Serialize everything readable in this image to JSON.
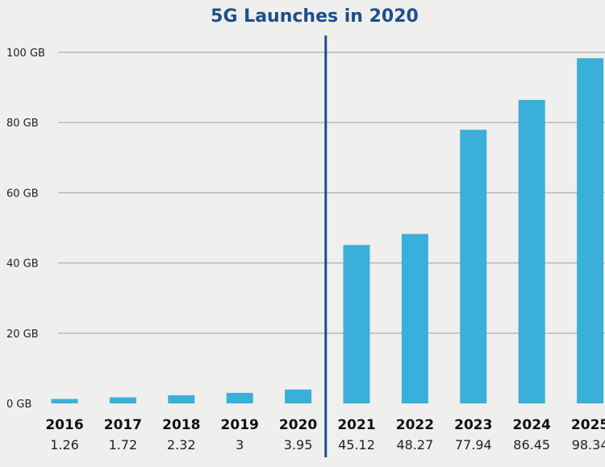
{
  "chart_data": {
    "type": "bar",
    "title": "",
    "annotation": "5G Launches in 2020",
    "categories": [
      "2016",
      "2017",
      "2018",
      "2019",
      "2020",
      "2021",
      "2022",
      "2023",
      "2024",
      "2025"
    ],
    "values": [
      1.26,
      1.72,
      2.32,
      3,
      3.95,
      45.12,
      48.27,
      77.94,
      86.45,
      98.34
    ],
    "value_labels": [
      "1.26",
      "1.72",
      "2.32",
      "3",
      "3.95",
      "45.12",
      "48.27",
      "77.94",
      "86.45",
      "98.34"
    ],
    "y_ticks": [
      "0 GB",
      "20 GB",
      "40 GB",
      "60 GB",
      "80 GB",
      "100 GB"
    ],
    "ylim": [
      0,
      100
    ],
    "grid": true,
    "bar_color": "#3aafd9",
    "annotation_color": "#1c4f8c",
    "annotation_position_after": "2020"
  }
}
